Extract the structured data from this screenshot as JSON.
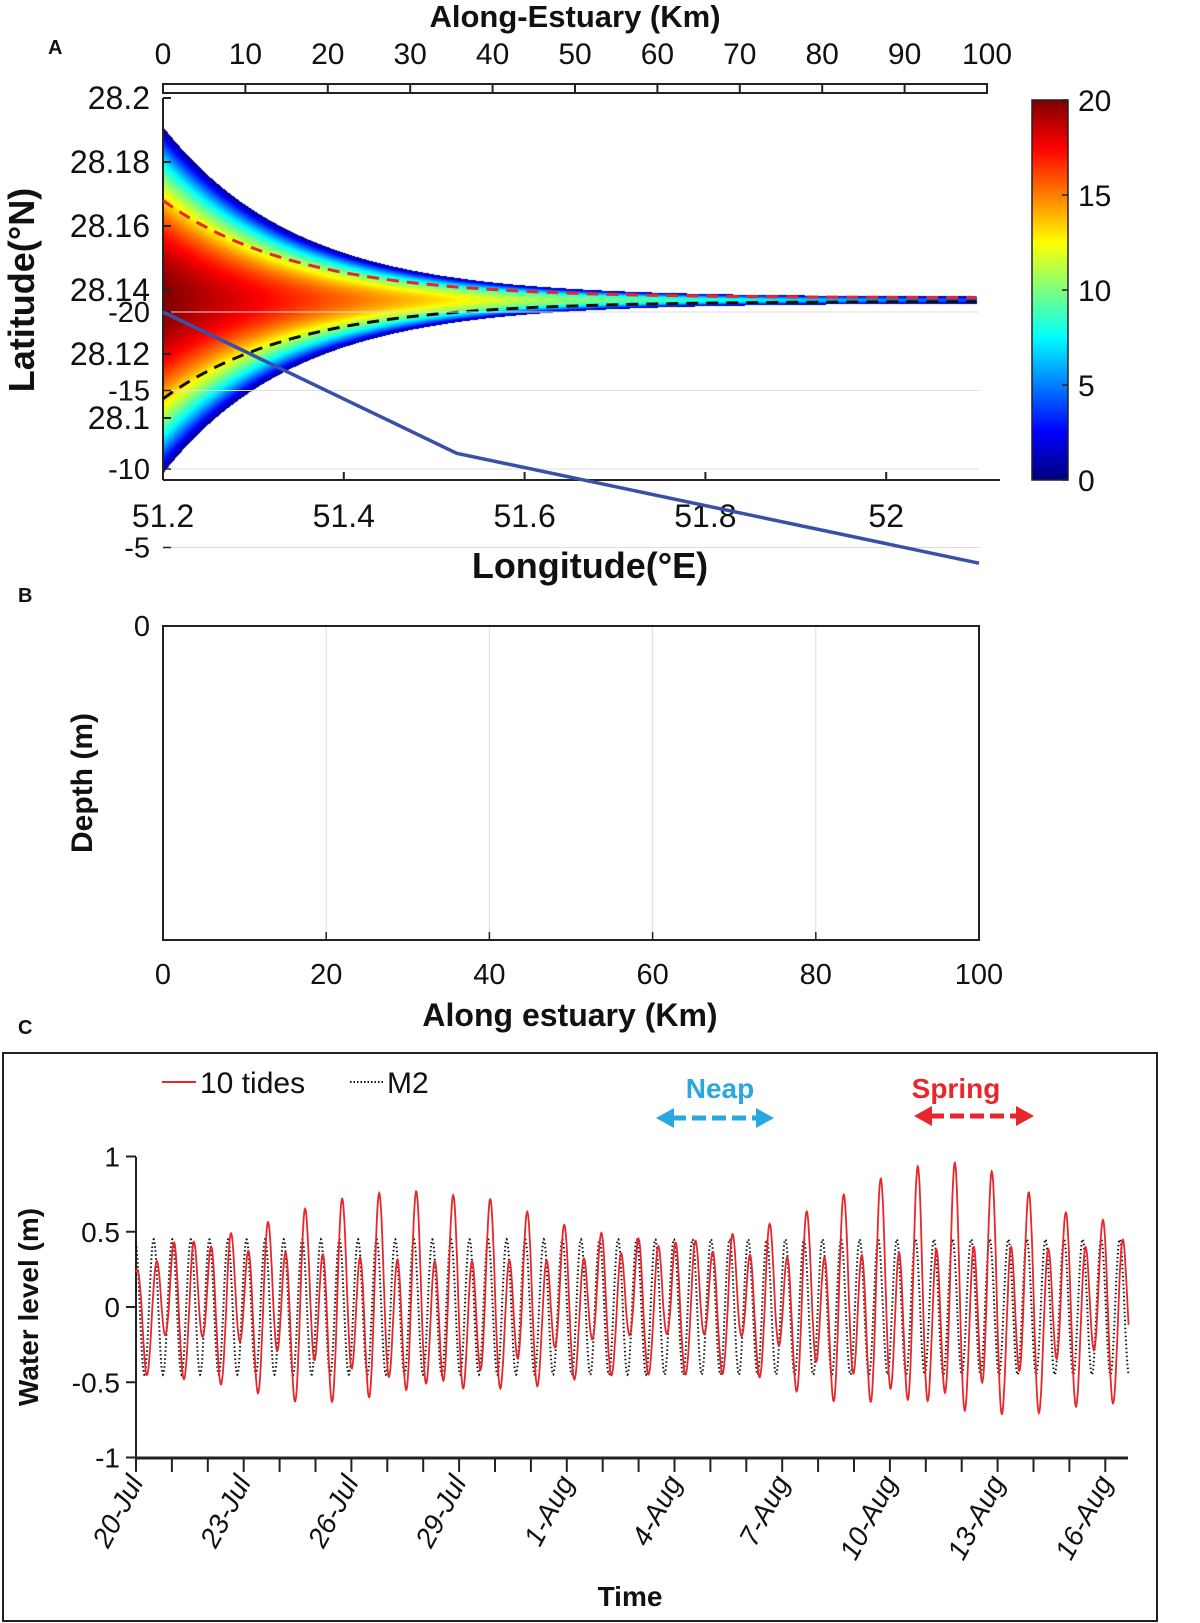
{
  "panel_labels": {
    "a": "A",
    "b": "B",
    "c": "C"
  },
  "chart_data": [
    {
      "type": "heatmap",
      "panel": "A",
      "top_xlabel": "Along-Estuary (Km)",
      "top_xticks": [
        "0",
        "10",
        "20",
        "30",
        "40",
        "50",
        "60",
        "70",
        "80",
        "90",
        "100"
      ],
      "top_xlim": [
        0,
        100
      ],
      "xlabel": "Longitude(°E)",
      "ylabel": "Latitude(°N)",
      "xticks": [
        "51.2",
        "51.4",
        "51.6",
        "51.8",
        "52"
      ],
      "yticks": [
        "28.2",
        "28.18",
        "28.16",
        "28.14",
        "28.12",
        "28.1"
      ],
      "xlim": [
        51.2,
        52.1
      ],
      "ylim": [
        28.08,
        28.2
      ],
      "colorbar": {
        "ticks": [
          "0",
          "5",
          "10",
          "15",
          "20"
        ],
        "range": [
          0,
          20
        ],
        "colormap": "jet"
      },
      "estuary": {
        "center_lat": 28.137,
        "mouth_lon": 51.2,
        "head_lon": 52.1,
        "mouth_north_lat": 28.191,
        "mouth_south_lat": 28.083,
        "mouth_depth": 20
      },
      "dashed_lines": [
        {
          "color": "#e8262b",
          "mouth_lat": 28.168
        },
        {
          "color": "#111111",
          "mouth_lat": 28.106
        }
      ]
    },
    {
      "type": "line",
      "panel": "B",
      "xlabel": "Along estuary (Km)",
      "ylabel": "Depth (m)",
      "xticks": [
        "0",
        "20",
        "40",
        "60",
        "80",
        "100"
      ],
      "yticks": [
        "0",
        "-5",
        "-10",
        "-15",
        "-20"
      ],
      "xlim": [
        0,
        100
      ],
      "ylim": [
        -20,
        0
      ],
      "grid": true,
      "color": "#3a50a8",
      "x": [
        0,
        36,
        100
      ],
      "y": [
        -20,
        -11,
        -4
      ]
    },
    {
      "type": "line",
      "panel": "C",
      "xlabel": "Time",
      "ylabel": "Water level (m)",
      "yticks": [
        "1",
        "0.5",
        "0",
        "-0.5",
        "-1"
      ],
      "ylim": [
        -1,
        1
      ],
      "xticks": [
        "20-Jul",
        "23-Jul",
        "26-Jul",
        "29-Jul",
        "1-Aug",
        "4-Aug",
        "7-Aug",
        "10-Aug",
        "13-Aug",
        "16-Aug"
      ],
      "legend": {
        "position": "top-left"
      },
      "series": [
        {
          "name": "10 tides",
          "color": "#e8262b",
          "style": "solid",
          "daily_high": [
            0.3,
            0.58,
            0.6,
            0.62,
            0.67,
            0.73,
            0.76,
            0.77,
            0.77,
            0.74,
            0.73,
            0.66,
            0.6,
            0.58,
            0.58,
            0.6,
            0.57,
            0.6,
            0.64,
            0.7,
            0.8,
            0.88,
            0.95,
            0.97,
            0.92,
            0.8,
            0.7,
            0.7
          ],
          "daily_low": [
            -0.45,
            -0.47,
            -0.5,
            -0.55,
            -0.65,
            -0.7,
            -0.72,
            -0.73,
            -0.72,
            -0.7,
            -0.65,
            -0.6,
            -0.52,
            -0.47,
            -0.45,
            -0.45,
            -0.45,
            -0.45,
            -0.55,
            -0.7,
            -0.75,
            -0.82,
            -0.85,
            -0.86,
            -0.83,
            -0.78,
            -0.7,
            -0.65
          ]
        },
        {
          "name": "M2",
          "color": "#111111",
          "style": "dotted",
          "amplitude": 0.45
        }
      ],
      "annotations": [
        {
          "text": "Neap",
          "color": "#29a8e0"
        },
        {
          "text": "Spring",
          "color": "#e8262b"
        }
      ]
    }
  ]
}
